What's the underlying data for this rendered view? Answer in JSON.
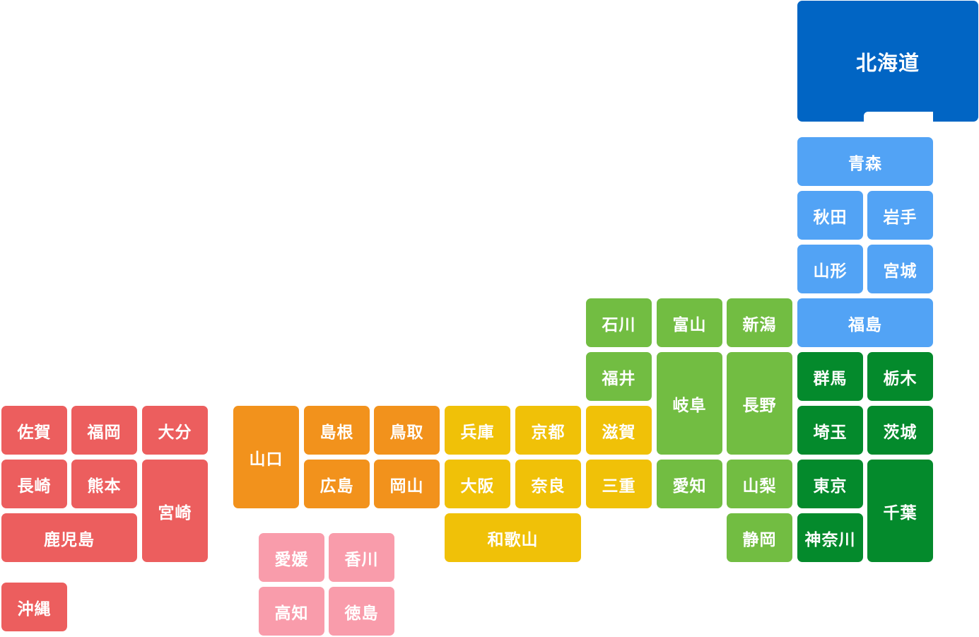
{
  "regions": {
    "hokkaido": "#0165c4",
    "tohoku": "#52a3f5",
    "kanto": "#048a2c",
    "chubu": "#72bd42",
    "kinki": "#f0c108",
    "chugoku": "#f2921c",
    "shikoku": "#f99cab",
    "kyushu": "#ec5e5e"
  },
  "prefectures": {
    "hokkaido": "北海道",
    "aomori": "青森",
    "akita": "秋田",
    "iwate": "岩手",
    "yamagata": "山形",
    "miyagi": "宮城",
    "fukushima": "福島",
    "ishikawa": "石川",
    "toyama": "富山",
    "niigata": "新潟",
    "fukui": "福井",
    "gifu": "岐阜",
    "nagano": "長野",
    "gunma": "群馬",
    "tochigi": "栃木",
    "saitama": "埼玉",
    "ibaraki": "茨城",
    "aichi": "愛知",
    "yamanashi": "山梨",
    "tokyo": "東京",
    "chiba": "千葉",
    "shizuoka": "静岡",
    "kanagawa": "神奈川",
    "shiga": "滋賀",
    "mie": "三重",
    "hyogo": "兵庫",
    "kyoto": "京都",
    "osaka": "大阪",
    "nara": "奈良",
    "wakayama": "和歌山",
    "yamaguchi": "山口",
    "shimane": "島根",
    "tottori": "鳥取",
    "hiroshima": "広島",
    "okayama": "岡山",
    "ehime": "愛媛",
    "kagawa": "香川",
    "kochi": "高知",
    "tokushima": "徳島",
    "saga": "佐賀",
    "fukuoka": "福岡",
    "oita": "大分",
    "nagasaki": "長崎",
    "kumamoto": "熊本",
    "miyazaki": "宮崎",
    "kagoshima": "鹿児島",
    "okinawa": "沖縄"
  }
}
